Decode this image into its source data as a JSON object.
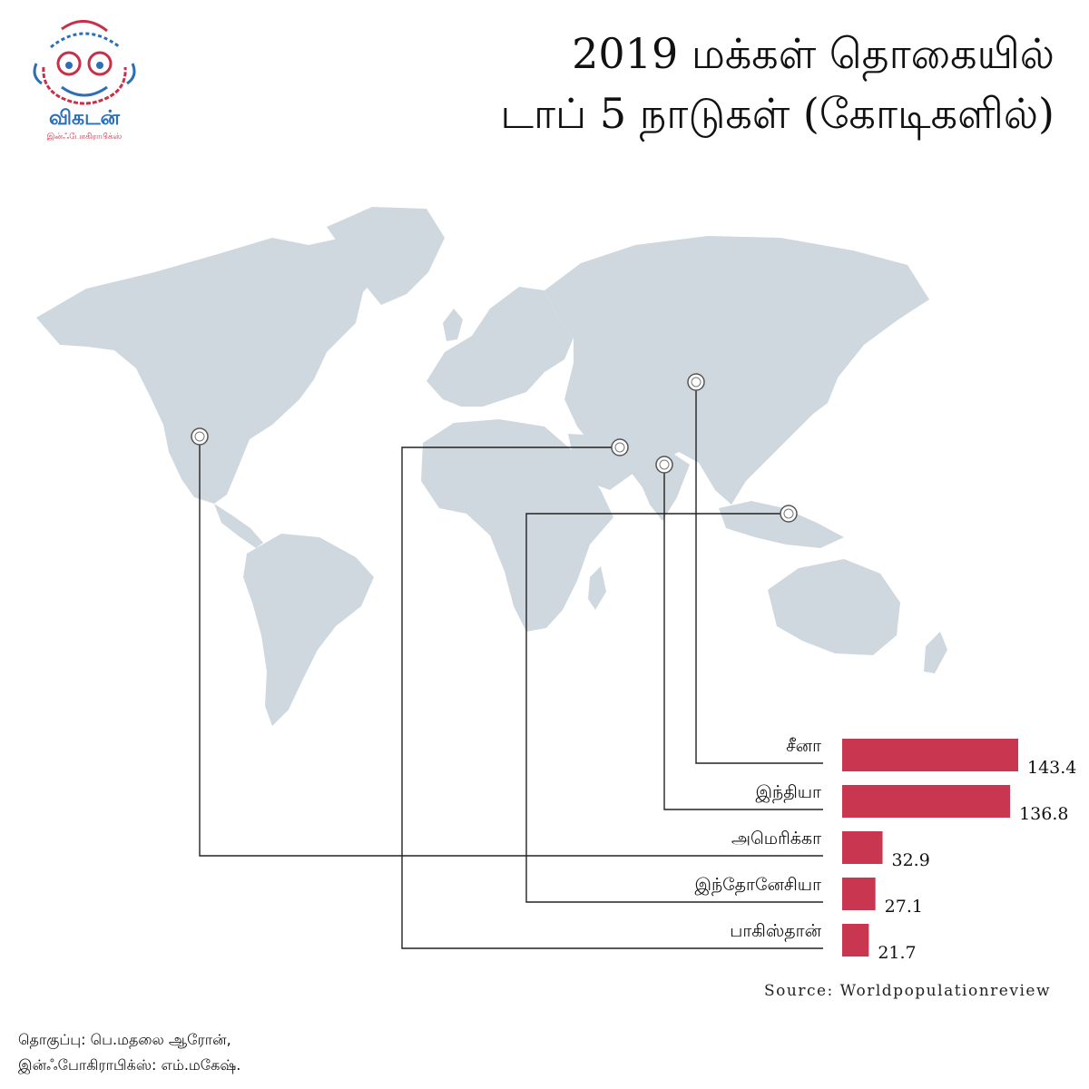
{
  "brand": {
    "name": "விகடன்",
    "subtitle": "இன்ஃபோகிராபிக்ஸ்"
  },
  "title": {
    "line1": "2019 மக்கள் தொகையில்",
    "line2": "டாப் 5 நாடுகள் (கோடிகளில்)"
  },
  "source": "Source: Worldpopulationreview",
  "credits": {
    "line1": "தொகுப்பு: பெ.மதலை ஆரோன்,",
    "line2": "இன்ஃபோகிராபிக்ஸ்: எம்.மகேஷ்."
  },
  "colors": {
    "bar": "#c8374f",
    "map": "#cfd8df",
    "line": "#222222",
    "logo_red": "#c8304a",
    "logo_blue": "#2c6fb7"
  },
  "chart_data": {
    "type": "bar",
    "orientation": "horizontal",
    "categories": [
      "சீனா",
      "இந்தியா",
      "அமெரிக்கா",
      "இந்தோனேசியா",
      "பாகிஸ்தான்"
    ],
    "values": [
      143.4,
      136.8,
      32.9,
      27.1,
      21.7
    ],
    "value_labels": [
      "143.4",
      "136.8",
      "32.9",
      "27.1",
      "21.7"
    ],
    "xlim": [
      0,
      150
    ],
    "legend": "none",
    "grid": false
  }
}
